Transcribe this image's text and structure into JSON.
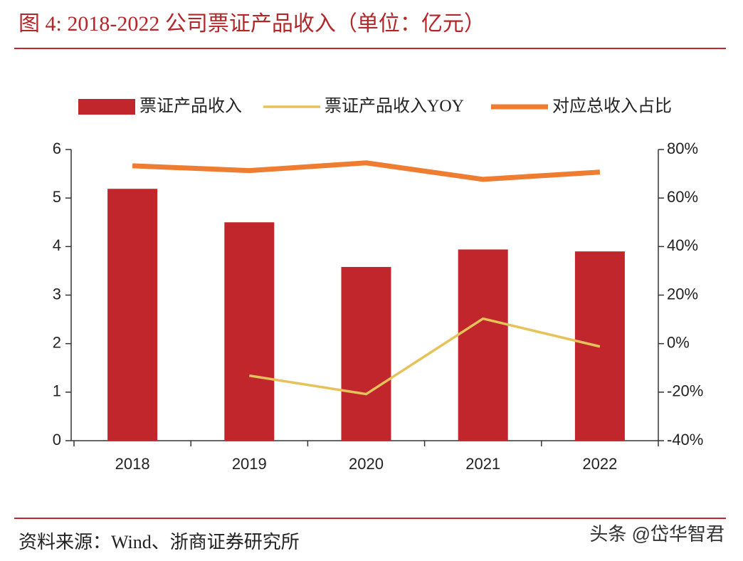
{
  "chart_data": {
    "type": "bar",
    "title": "图 4:  2018-2022 公司票证产品收入（单位：亿元）",
    "source": "资料来源：Wind、浙商证券研究所",
    "watermark": "头条 @岱华智君",
    "categories": [
      "2018",
      "2019",
      "2020",
      "2021",
      "2022"
    ],
    "series": [
      {
        "name": "票证产品收入",
        "type": "bar",
        "color": "#c0262b",
        "values": [
          5.19,
          4.5,
          3.58,
          3.94,
          3.9
        ]
      },
      {
        "name": "票证产品收入YOY",
        "type": "line",
        "axis": "y2",
        "color": "#e6c35a",
        "values": [
          null,
          -13.2,
          -20.8,
          10.3,
          -1.2
        ]
      },
      {
        "name": "对应总收入占比",
        "type": "line",
        "axis": "y2",
        "color": "#ee7d31",
        "values": [
          73.3,
          71.3,
          74.5,
          67.7,
          70.7
        ]
      }
    ],
    "ylim": [
      0,
      6
    ],
    "yticks": [
      0,
      1,
      2,
      3,
      4,
      5,
      6
    ],
    "y2lim": [
      -40,
      80
    ],
    "y2ticks": [
      {
        "value": -40,
        "label": "-40%"
      },
      {
        "value": -20,
        "label": "-20%"
      },
      {
        "value": 0,
        "label": "0%"
      },
      {
        "value": 20,
        "label": "20%"
      },
      {
        "value": 40,
        "label": "40%"
      },
      {
        "value": 60,
        "label": "60%"
      },
      {
        "value": 80,
        "label": "80%"
      }
    ],
    "grid": false,
    "legend": "top"
  }
}
